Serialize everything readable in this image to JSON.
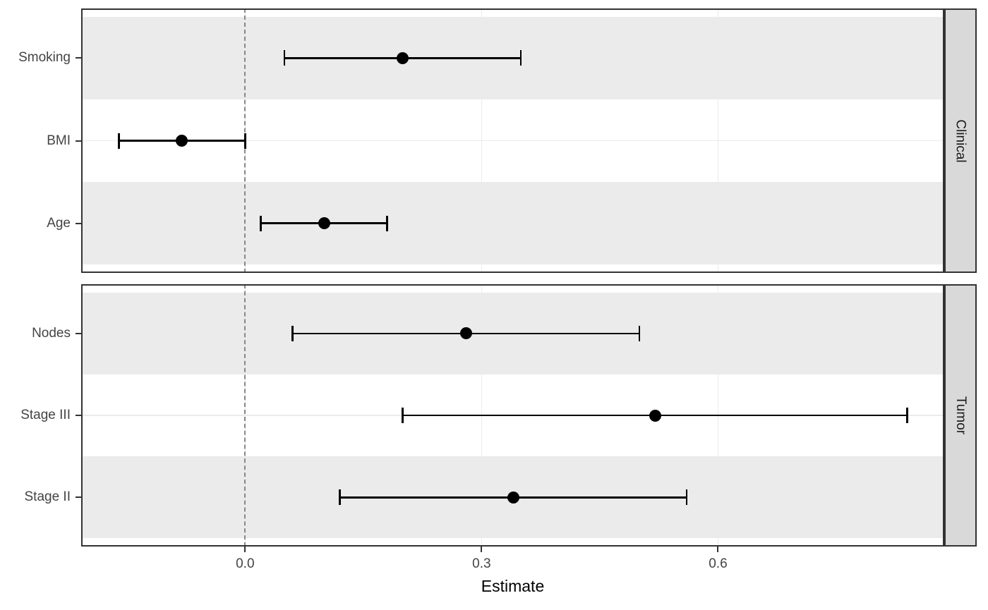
{
  "chart_data": {
    "type": "scatter",
    "variant": "forest-plot-with-error-bars",
    "xlabel": "Estimate",
    "x_ticks": [
      0.0,
      0.3,
      0.6
    ],
    "x_tick_labels": [
      "0.0",
      "0.3",
      "0.6"
    ],
    "xlim": [
      -0.208,
      0.887
    ],
    "reference_line": 0,
    "grid": "major-on",
    "legend": "none",
    "facets": [
      {
        "label": "Clinical",
        "rows": [
          {
            "label": "Smoking",
            "estimate": 0.2,
            "ci_low": 0.05,
            "ci_high": 0.35
          },
          {
            "label": "BMI",
            "estimate": -0.08,
            "ci_low": -0.16,
            "ci_high": 0.0
          },
          {
            "label": "Age",
            "estimate": 0.1,
            "ci_low": 0.02,
            "ci_high": 0.18
          }
        ]
      },
      {
        "label": "Tumor",
        "rows": [
          {
            "label": "Nodes",
            "estimate": 0.28,
            "ci_low": 0.06,
            "ci_high": 0.5
          },
          {
            "label": "Stage III",
            "estimate": 0.52,
            "ci_low": 0.2,
            "ci_high": 0.84
          },
          {
            "label": "Stage II",
            "estimate": 0.34,
            "ci_low": 0.12,
            "ci_high": 0.56
          }
        ]
      }
    ],
    "colors": {
      "point": "#000000",
      "error_bar": "#000000",
      "stripe": "#ebebeb",
      "gridline": "#ebebeb",
      "panel_border": "#333333",
      "strip_background": "#d9d9d9",
      "strip_text": "#1a1a1a",
      "reference_line": "#888888",
      "tick_label": "#444444",
      "axis_title": "#000000"
    }
  }
}
